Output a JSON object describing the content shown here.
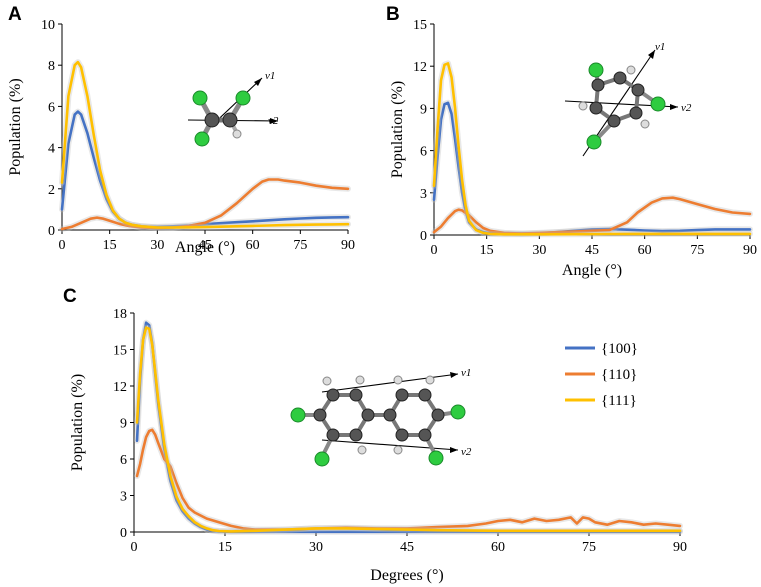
{
  "colors": {
    "s100": "#4472C4",
    "s110": "#ED7D31",
    "s111": "#FFC000"
  },
  "vector_labels": {
    "v1": "v1",
    "v2": "v2"
  },
  "chart_data": [
    {
      "id": "A",
      "type": "line",
      "panel_label": "A",
      "xlabel": "Angle (°)",
      "ylabel": "Population (%)",
      "xlim": [
        0,
        90
      ],
      "ylim": [
        0,
        10
      ],
      "xticks": [
        0,
        15,
        30,
        45,
        60,
        75,
        90
      ],
      "yticks": [
        0,
        2,
        4,
        6,
        8,
        10
      ],
      "series": [
        {
          "name": "{100}",
          "color": "#4472C4",
          "x": [
            0,
            2,
            4,
            5,
            6,
            8,
            10,
            12,
            14,
            16,
            18,
            20,
            22,
            25,
            28,
            30,
            35,
            40,
            45,
            50,
            55,
            60,
            65,
            70,
            75,
            80,
            85,
            90
          ],
          "y": [
            1.0,
            4.2,
            5.6,
            5.75,
            5.6,
            4.7,
            3.5,
            2.4,
            1.5,
            0.9,
            0.55,
            0.35,
            0.25,
            0.18,
            0.15,
            0.15,
            0.18,
            0.22,
            0.28,
            0.33,
            0.38,
            0.42,
            0.47,
            0.52,
            0.56,
            0.59,
            0.61,
            0.62
          ]
        },
        {
          "name": "{110}",
          "color": "#ED7D31",
          "x": [
            0,
            3,
            6,
            9,
            11,
            13,
            15,
            18,
            21,
            25,
            30,
            35,
            40,
            45,
            50,
            55,
            60,
            63,
            65,
            68,
            70,
            75,
            80,
            85,
            90
          ],
          "y": [
            0.05,
            0.15,
            0.35,
            0.55,
            0.6,
            0.55,
            0.45,
            0.3,
            0.2,
            0.12,
            0.1,
            0.12,
            0.2,
            0.35,
            0.7,
            1.3,
            2.0,
            2.35,
            2.45,
            2.45,
            2.4,
            2.3,
            2.15,
            2.05,
            2.0
          ]
        },
        {
          "name": "{111}",
          "color": "#FFC000",
          "x": [
            0,
            2,
            4,
            5,
            6,
            8,
            10,
            12,
            14,
            16,
            18,
            20,
            22,
            25,
            30,
            35,
            40,
            45,
            50,
            55,
            60,
            65,
            70,
            75,
            80,
            85,
            90
          ],
          "y": [
            2.3,
            6.5,
            8.0,
            8.15,
            7.9,
            6.5,
            4.6,
            2.9,
            1.7,
            0.95,
            0.55,
            0.35,
            0.25,
            0.18,
            0.12,
            0.12,
            0.13,
            0.14,
            0.16,
            0.18,
            0.2,
            0.22,
            0.24,
            0.25,
            0.26,
            0.27,
            0.28
          ]
        }
      ]
    },
    {
      "id": "B",
      "type": "line",
      "panel_label": "B",
      "xlabel": "Angle (°)",
      "ylabel": "Population (%)",
      "xlim": [
        0,
        90
      ],
      "ylim": [
        0,
        15
      ],
      "xticks": [
        0,
        15,
        30,
        45,
        60,
        75,
        90
      ],
      "yticks": [
        0,
        3,
        6,
        9,
        12,
        15
      ],
      "series": [
        {
          "name": "{100}",
          "color": "#4472C4",
          "x": [
            0,
            1,
            2,
            3,
            4,
            5,
            6,
            7,
            8,
            9,
            10,
            12,
            14,
            16,
            20,
            25,
            30,
            35,
            40,
            45,
            50,
            55,
            60,
            65,
            70,
            75,
            80,
            85,
            90
          ],
          "y": [
            2.5,
            5.5,
            8.2,
            9.3,
            9.4,
            8.6,
            6.8,
            4.8,
            3.0,
            1.7,
            0.9,
            0.4,
            0.2,
            0.12,
            0.1,
            0.1,
            0.12,
            0.2,
            0.3,
            0.4,
            0.42,
            0.38,
            0.32,
            0.28,
            0.3,
            0.35,
            0.4,
            0.4,
            0.4
          ]
        },
        {
          "name": "{110}",
          "color": "#ED7D31",
          "x": [
            0,
            2,
            4,
            6,
            7,
            8,
            10,
            12,
            14,
            16,
            20,
            25,
            30,
            35,
            40,
            45,
            50,
            55,
            58,
            62,
            65,
            68,
            70,
            75,
            80,
            85,
            90
          ],
          "y": [
            0.2,
            0.6,
            1.2,
            1.7,
            1.8,
            1.75,
            1.4,
            0.9,
            0.5,
            0.3,
            0.15,
            0.1,
            0.15,
            0.2,
            0.25,
            0.3,
            0.35,
            0.9,
            1.6,
            2.3,
            2.6,
            2.65,
            2.55,
            2.2,
            1.85,
            1.6,
            1.5
          ]
        },
        {
          "name": "{111}",
          "color": "#FFC000",
          "x": [
            0,
            1,
            2,
            3,
            4,
            5,
            6,
            7,
            8,
            9,
            10,
            12,
            14,
            16,
            20,
            25,
            30,
            40,
            50,
            60,
            70,
            80,
            90
          ],
          "y": [
            3.5,
            7.5,
            11.0,
            12.1,
            12.2,
            11.2,
            9.0,
            6.3,
            3.9,
            2.1,
            1.0,
            0.35,
            0.15,
            0.08,
            0.05,
            0.05,
            0.05,
            0.06,
            0.07,
            0.08,
            0.08,
            0.08,
            0.08
          ]
        }
      ]
    },
    {
      "id": "C",
      "type": "line",
      "panel_label": "C",
      "xlabel": "Degrees (°)",
      "ylabel": "Population (%)",
      "xlim": [
        0,
        90
      ],
      "ylim": [
        0,
        18
      ],
      "xticks": [
        0,
        15,
        30,
        45,
        60,
        75,
        90
      ],
      "yticks": [
        0,
        3,
        6,
        9,
        12,
        15,
        18
      ],
      "legend": {
        "position": "right",
        "entries": [
          "{100}",
          "{110}",
          "{111}"
        ]
      },
      "series": [
        {
          "name": "{100}",
          "color": "#4472C4",
          "x": [
            0.5,
            1,
            1.5,
            2,
            2.5,
            3,
            3.5,
            4,
            5,
            6,
            7,
            8,
            9,
            10,
            11,
            12,
            13,
            14,
            16,
            20,
            30,
            40,
            50,
            60,
            70,
            80,
            90
          ],
          "y": [
            7.5,
            12.5,
            15.8,
            17.2,
            17.0,
            15.5,
            13.0,
            10.5,
            6.8,
            4.2,
            2.6,
            1.7,
            1.1,
            0.7,
            0.4,
            0.2,
            0.1,
            0.05,
            0.02,
            0.02,
            0.02,
            0.02,
            0.02,
            0.02,
            0.02,
            0.02,
            0.02
          ]
        },
        {
          "name": "{110}",
          "color": "#ED7D31",
          "x": [
            0.5,
            1,
            1.5,
            2,
            2.5,
            3,
            3.5,
            4,
            5,
            6,
            7,
            8,
            9,
            10,
            12,
            14,
            16,
            18,
            20,
            25,
            30,
            35,
            40,
            45,
            50,
            55,
            58,
            60,
            62,
            64,
            66,
            68,
            70,
            72,
            73,
            74,
            75,
            76,
            78,
            80,
            82,
            84,
            86,
            88,
            90
          ],
          "y": [
            4.6,
            5.6,
            6.8,
            7.8,
            8.3,
            8.4,
            8.0,
            7.3,
            6.0,
            5.4,
            4.0,
            2.8,
            2.0,
            1.6,
            1.1,
            0.8,
            0.5,
            0.3,
            0.2,
            0.2,
            0.3,
            0.35,
            0.3,
            0.3,
            0.4,
            0.5,
            0.7,
            0.9,
            1.0,
            0.8,
            1.1,
            0.9,
            1.0,
            1.2,
            0.7,
            1.2,
            1.1,
            0.8,
            0.6,
            0.9,
            0.8,
            0.6,
            0.7,
            0.6,
            0.5
          ]
        },
        {
          "name": "{111}",
          "color": "#FFC000",
          "x": [
            0.5,
            1,
            1.5,
            2,
            2.5,
            3,
            3.5,
            4,
            5,
            6,
            7,
            8,
            9,
            10,
            11,
            12,
            13,
            14,
            16,
            20,
            25,
            30,
            35,
            40,
            45,
            50,
            60,
            70,
            80,
            90
          ],
          "y": [
            9.0,
            13.0,
            15.8,
            16.8,
            16.7,
            15.4,
            13.2,
            10.8,
            7.2,
            4.6,
            2.9,
            1.9,
            1.3,
            0.8,
            0.5,
            0.3,
            0.15,
            0.08,
            0.05,
            0.1,
            0.2,
            0.3,
            0.3,
            0.25,
            0.2,
            0.15,
            0.1,
            0.1,
            0.1,
            0.1
          ]
        }
      ]
    }
  ]
}
